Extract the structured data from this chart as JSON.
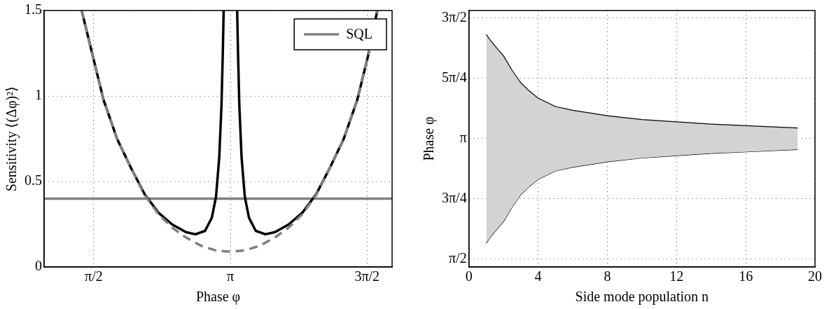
{
  "chart_data": [
    {
      "type": "line",
      "xlabel": "Phase φ",
      "ylabel": "Sensitivity ⟨(Δφ)²⟩",
      "xlim": [
        1,
        5
      ],
      "ylim": [
        0,
        1.5
      ],
      "xticks": [
        {
          "value": 1.5708,
          "label": "π/2"
        },
        {
          "value": 3.1416,
          "label": "π"
        },
        {
          "value": 4.7124,
          "label": "3π/2"
        }
      ],
      "yticks": [
        0,
        0.5,
        1,
        1.5
      ],
      "grid": true,
      "legend": "top right",
      "marker": "none",
      "series": [
        {
          "name": "SQL",
          "color": "#808080",
          "x": [
            1,
            5
          ],
          "values": [
            0.4,
            0.4
          ]
        },
        {
          "color": "#000000",
          "x": [
            1.432,
            1.558,
            1.684,
            1.841,
            1.999,
            2.156,
            2.313,
            2.471,
            2.629,
            2.739,
            2.85,
            2.928,
            2.976,
            3.013,
            3.039,
            3.054,
            3.064,
            3.1416,
            3.219,
            3.229,
            3.244,
            3.27,
            3.307,
            3.355,
            3.433,
            3.544,
            3.654,
            3.812,
            3.97,
            4.127,
            4.284,
            4.442,
            4.599,
            4.725,
            4.83
          ],
          "values": [
            1.5,
            1.237,
            0.976,
            0.747,
            0.579,
            0.425,
            0.318,
            0.249,
            0.204,
            0.191,
            0.211,
            0.288,
            0.41,
            0.64,
            0.946,
            1.252,
            1.5,
            null,
            1.5,
            1.252,
            0.946,
            0.64,
            0.41,
            0.288,
            0.211,
            0.191,
            0.204,
            0.249,
            0.318,
            0.425,
            0.579,
            0.747,
            0.976,
            1.237,
            1.5
          ]
        },
        {
          "color": "#808080",
          "line_style": "dashed",
          "x": [
            1.432,
            1.558,
            1.684,
            1.841,
            1.999,
            2.156,
            2.313,
            2.471,
            2.629,
            2.8,
            2.97,
            3.1416,
            3.313,
            3.483,
            3.654,
            3.812,
            3.97,
            4.127,
            4.284,
            4.442,
            4.599,
            4.725,
            4.83
          ],
          "values": [
            1.5,
            1.237,
            0.976,
            0.747,
            0.579,
            0.42,
            0.31,
            0.23,
            0.173,
            0.125,
            0.097,
            0.089,
            0.097,
            0.125,
            0.173,
            0.23,
            0.31,
            0.42,
            0.579,
            0.747,
            0.976,
            1.237,
            1.5
          ]
        }
      ]
    },
    {
      "type": "line",
      "xlabel": "Side mode population n",
      "ylabel": "Phase φ",
      "xlim": [
        0,
        20
      ],
      "ylim": [
        1.47,
        4.81
      ],
      "xticks": [
        0,
        4,
        8,
        12,
        16,
        20
      ],
      "yticks": [
        {
          "value": 1.5708,
          "label": "π/2"
        },
        {
          "value": 2.3562,
          "label": "3π/4"
        },
        {
          "value": 3.1416,
          "label": "π"
        },
        {
          "value": 3.927,
          "label": "5π/4"
        },
        {
          "value": 4.7124,
          "label": "3π/2"
        }
      ],
      "grid": true,
      "marker": "none",
      "x": [
        1,
        1.25,
        1.5,
        2,
        2.5,
        3,
        3.5,
        4,
        5,
        6,
        8,
        10,
        12,
        14,
        16,
        19
      ],
      "series": [
        {
          "color": "#000000",
          "values": [
            1.78,
            1.86,
            1.93,
            2.06,
            2.25,
            2.41,
            2.52,
            2.61,
            2.72,
            2.77,
            2.84,
            2.89,
            2.92,
            2.95,
            2.97,
            3.0
          ]
        },
        {
          "type": "area",
          "color": "#d3d3d3",
          "values": [
            4.5,
            4.42,
            4.35,
            4.22,
            4.03,
            3.87,
            3.76,
            3.67,
            3.56,
            3.51,
            3.44,
            3.39,
            3.36,
            3.33,
            3.31,
            3.28
          ]
        }
      ]
    }
  ]
}
